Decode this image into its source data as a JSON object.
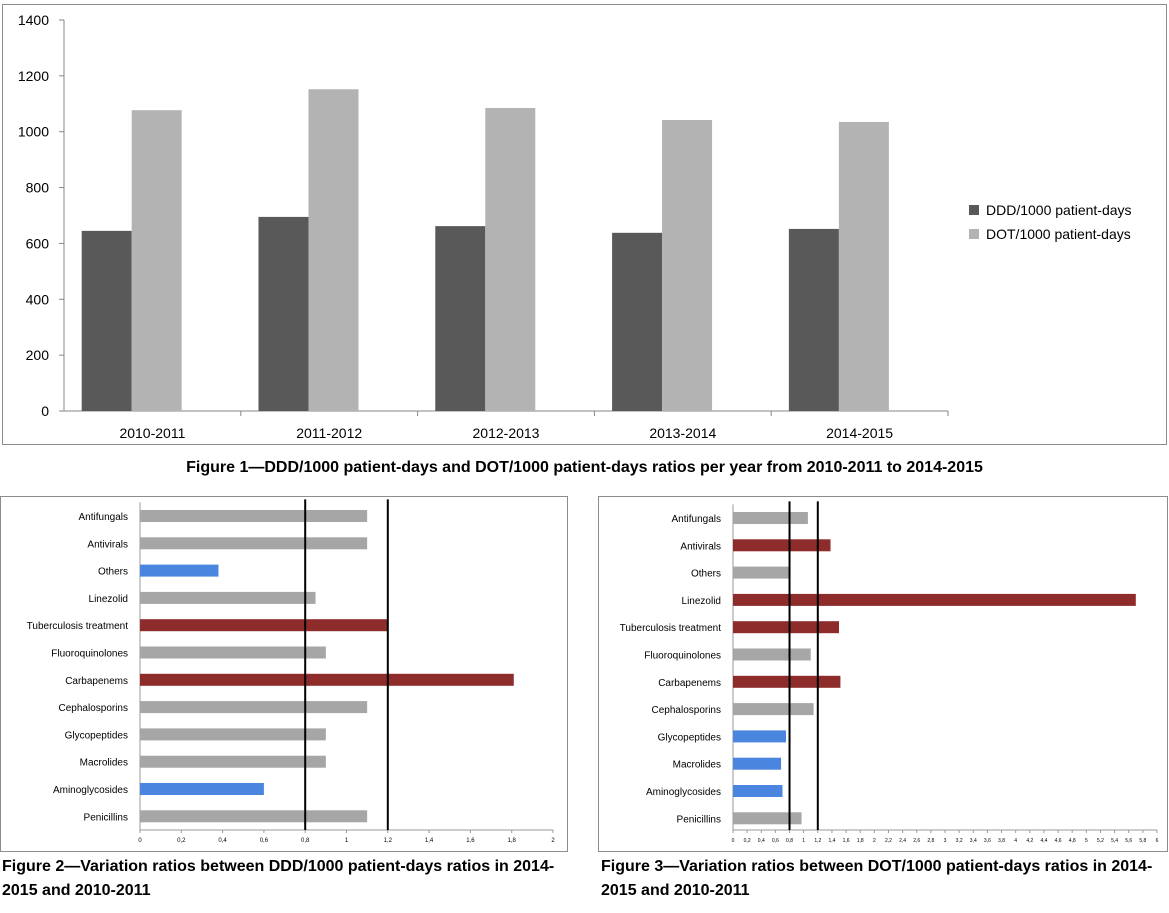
{
  "chart_data": [
    {
      "type": "bar",
      "categories": [
        "2010-2011",
        "2011-2012",
        "2012-2013",
        "2013-2014",
        "2014-2015"
      ],
      "series": [
        {
          "name": "DDD/1000 patient-days",
          "color": "#595959",
          "values": [
            645,
            695,
            662,
            638,
            652
          ]
        },
        {
          "name": "DOT/1000 patient-days",
          "color": "#b3b3b3",
          "values": [
            1077,
            1152,
            1085,
            1042,
            1035
          ]
        }
      ],
      "yticks": [
        "0",
        "200",
        "400",
        "600",
        "800",
        "1000",
        "1200",
        "1400"
      ],
      "ylim": [
        0,
        1400
      ],
      "legend_position": "right",
      "title": "",
      "xlabel": "",
      "ylabel": ""
    },
    {
      "type": "bar",
      "orientation": "horizontal",
      "categories": [
        "Antifungals",
        "Antivirals",
        "Others",
        "Linezolid",
        "Tuberculosis treatment",
        "Fluoroquinolones",
        "Carbapenems",
        "Cephalosporins",
        "Glycopeptides",
        "Macrolides",
        "Aminoglycosides",
        "Penicillins"
      ],
      "values": [
        1.1,
        1.1,
        0.38,
        0.85,
        1.2,
        0.9,
        1.81,
        1.1,
        0.9,
        0.9,
        0.6,
        1.1
      ],
      "colors": [
        "#a6a6a6",
        "#a6a6a6",
        "#4a86e0",
        "#a6a6a6",
        "#8e2c2c",
        "#a6a6a6",
        "#8e2c2c",
        "#a6a6a6",
        "#a6a6a6",
        "#a6a6a6",
        "#4a86e0",
        "#a6a6a6"
      ],
      "reference_lines": [
        0.8,
        1.2
      ],
      "xticks": [
        "0",
        "0,2",
        "0,4",
        "0,6",
        "0,8",
        "1",
        "1,2",
        "1,4",
        "1,6",
        "1,8",
        "2"
      ],
      "xlim": [
        0,
        2
      ]
    },
    {
      "type": "bar",
      "orientation": "horizontal",
      "categories": [
        "Antifungals",
        "Antivirals",
        "Others",
        "Linezolid",
        "Tuberculosis treatment",
        "Fluoroquinolones",
        "Carbapenems",
        "Cephalosporins",
        "Glycopeptides",
        "Macrolides",
        "Aminoglycosides",
        "Penicillins"
      ],
      "values": [
        1.06,
        1.38,
        0.8,
        5.7,
        1.5,
        1.1,
        1.52,
        1.14,
        0.75,
        0.68,
        0.7,
        0.97
      ],
      "colors": [
        "#a6a6a6",
        "#8e2c2c",
        "#a6a6a6",
        "#8e2c2c",
        "#8e2c2c",
        "#a6a6a6",
        "#8e2c2c",
        "#a6a6a6",
        "#4a86e0",
        "#4a86e0",
        "#4a86e0",
        "#a6a6a6"
      ],
      "reference_lines": [
        0.8,
        1.2
      ],
      "xticks": [
        "0",
        "0,2",
        "0,4",
        "0,6",
        "0,8",
        "1",
        "1,2",
        "1,4",
        "1,6",
        "1,8",
        "2",
        "2,2",
        "2,4",
        "2,6",
        "2,8",
        "3",
        "3,2",
        "3,4",
        "3,6",
        "3,8",
        "4",
        "4,2",
        "4,4",
        "4,6",
        "4,8",
        "5",
        "5,2",
        "5,4",
        "5,6",
        "5,8",
        "6"
      ],
      "xlim": [
        0,
        6
      ]
    }
  ],
  "captions": {
    "fig1": "Figure 1—DDD/1000 patient-days and DOT/1000 patient-days ratios per year from 2010-2011 to 2014-2015",
    "fig2": "Figure 2—Variation ratios between DDD/1000 patient-days ratios in 2014-2015 and 2010-2011",
    "fig3": "Figure 3—Variation ratios between DOT/1000 patient-days ratios in 2014-2015 and 2010-2011"
  }
}
